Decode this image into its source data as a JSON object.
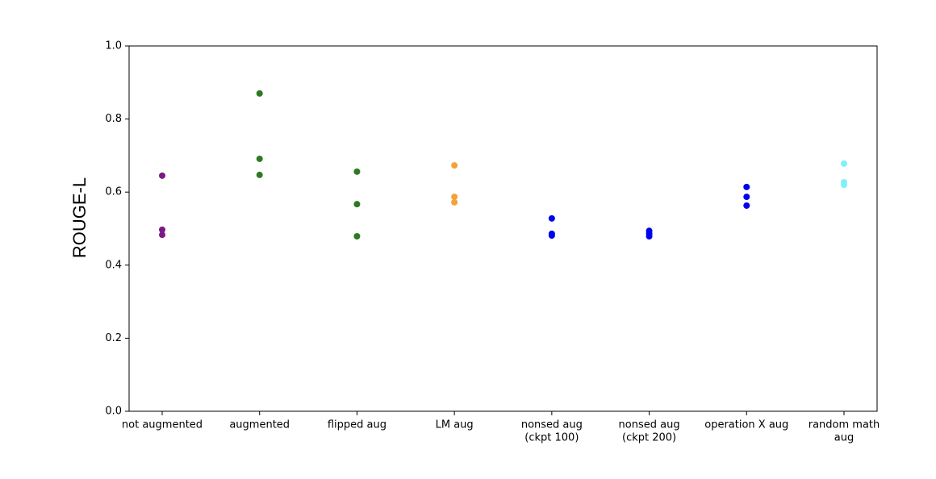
{
  "chart_data": {
    "type": "strip",
    "y_label": "ROUGE-L",
    "categories": [
      [
        "not augmented"
      ],
      [
        "augmented"
      ],
      [
        "flipped aug"
      ],
      [
        "LM aug"
      ],
      [
        "nonsed aug",
        "(ckpt 100)"
      ],
      [
        "nonsed aug",
        "(ckpt 200)"
      ],
      [
        "operation X aug"
      ],
      [
        "random math",
        "aug"
      ]
    ],
    "values": [
      [
        0.645,
        0.497,
        0.483
      ],
      [
        0.87,
        0.691,
        0.647
      ],
      [
        0.656,
        0.567,
        0.479
      ],
      [
        0.673,
        0.587,
        0.572
      ],
      [
        0.528,
        0.486,
        0.481
      ],
      [
        0.494,
        0.486,
        0.479
      ],
      [
        0.614,
        0.587,
        0.563
      ],
      [
        0.678,
        0.627,
        0.62
      ]
    ],
    "colors": [
      "#7a1a86",
      "#2e7a22",
      "#2e7a22",
      "#f2a23a",
      "#0000f0",
      "#0000f0",
      "#0000f0",
      "#7ff0fc"
    ],
    "ylim": [
      0,
      1
    ],
    "yticks": [
      {
        "value": 0,
        "label": "0.0"
      },
      0.2,
      0.4,
      0.6,
      0.8,
      {
        "value": 1,
        "label": "1.0"
      }
    ]
  }
}
